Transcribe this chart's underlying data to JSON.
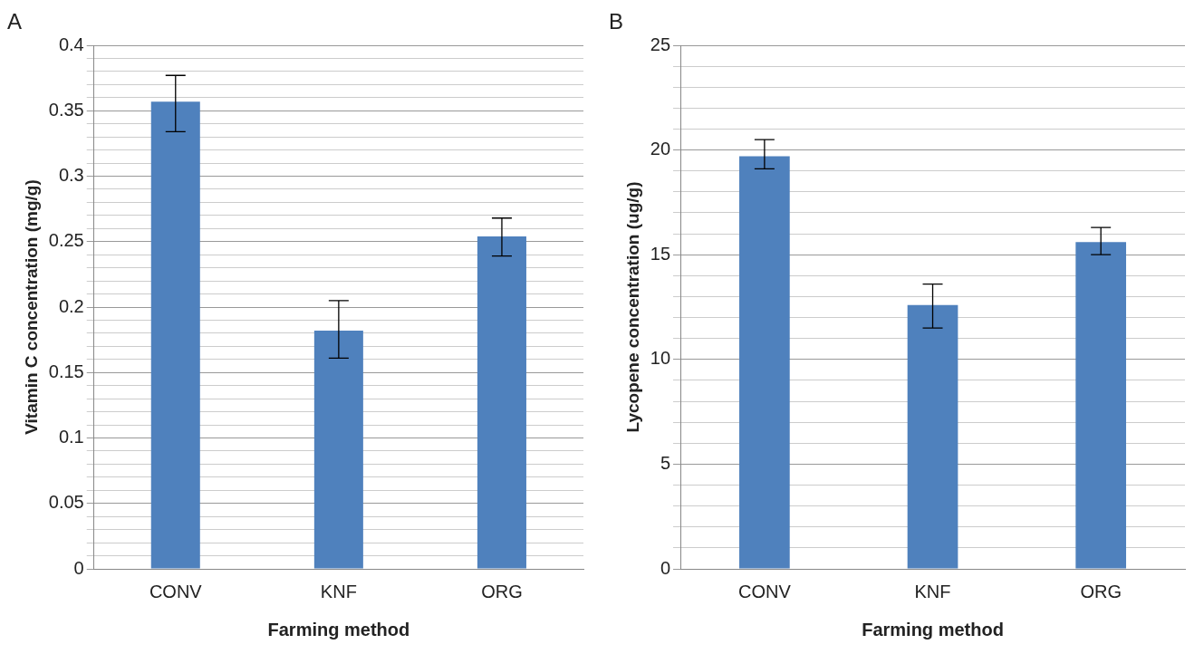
{
  "chart_data": [
    {
      "type": "bar",
      "annotations": [
        "A"
      ],
      "xlabel": "Farming method",
      "ylabel": "Vitamin C concentration (mg/g)",
      "categories": [
        "CONV",
        "KNF",
        "ORG"
      ],
      "values": [
        0.357,
        0.182,
        0.254
      ],
      "errors": [
        [
          0.334,
          0.377
        ],
        [
          0.161,
          0.205
        ],
        [
          0.239,
          0.268
        ]
      ],
      "color": "#4f81bd",
      "ylim": [
        0,
        0.4
      ],
      "yticks": [
        0,
        {
          "value": 0.01,
          "label": null
        },
        {
          "value": 0.02,
          "label": null
        },
        {
          "value": 0.03,
          "label": null
        },
        {
          "value": 0.04,
          "label": null
        },
        0.05,
        {
          "value": 0.06,
          "label": null
        },
        {
          "value": 0.07,
          "label": null
        },
        {
          "value": 0.08,
          "label": null
        },
        {
          "value": 0.09,
          "label": null
        },
        0.1,
        {
          "value": 0.11,
          "label": null
        },
        {
          "value": 0.12,
          "label": null
        },
        {
          "value": 0.13,
          "label": null
        },
        {
          "value": 0.14,
          "label": null
        },
        0.15,
        {
          "value": 0.16,
          "label": null
        },
        {
          "value": 0.17,
          "label": null
        },
        {
          "value": 0.18,
          "label": null
        },
        {
          "value": 0.19,
          "label": null
        },
        0.2,
        {
          "value": 0.21,
          "label": null
        },
        {
          "value": 0.22,
          "label": null
        },
        {
          "value": 0.23,
          "label": null
        },
        {
          "value": 0.24,
          "label": null
        },
        0.25,
        {
          "value": 0.26,
          "label": null
        },
        {
          "value": 0.27,
          "label": null
        },
        {
          "value": 0.28,
          "label": null
        },
        {
          "value": 0.29,
          "label": null
        },
        0.3,
        {
          "value": 0.31,
          "label": null
        },
        {
          "value": 0.32,
          "label": null
        },
        {
          "value": 0.33,
          "label": null
        },
        {
          "value": 0.34,
          "label": null
        },
        0.35,
        {
          "value": 0.36,
          "label": null
        },
        {
          "value": 0.37,
          "label": null
        },
        {
          "value": 0.38,
          "label": null
        },
        {
          "value": 0.39,
          "label": null
        },
        0.4
      ],
      "grid": "y",
      "legend": false
    },
    {
      "type": "bar",
      "annotations": [
        "B"
      ],
      "xlabel": "Farming method",
      "ylabel": "Lycopene concentration (ug/g)",
      "categories": [
        "CONV",
        "KNF",
        "ORG"
      ],
      "values": [
        19.7,
        12.6,
        15.6
      ],
      "errors": [
        [
          19.1,
          20.5
        ],
        [
          11.5,
          13.6
        ],
        [
          15.0,
          16.3
        ]
      ],
      "color": "#4f81bd",
      "ylim": [
        0,
        25
      ],
      "yticks": [
        0,
        {
          "value": 1,
          "label": null
        },
        {
          "value": 2,
          "label": null
        },
        {
          "value": 3,
          "label": null
        },
        {
          "value": 4,
          "label": null
        },
        5,
        {
          "value": 6,
          "label": null
        },
        {
          "value": 7,
          "label": null
        },
        {
          "value": 8,
          "label": null
        },
        {
          "value": 9,
          "label": null
        },
        10,
        {
          "value": 11,
          "label": null
        },
        {
          "value": 12,
          "label": null
        },
        {
          "value": 13,
          "label": null
        },
        {
          "value": 14,
          "label": null
        },
        15,
        {
          "value": 16,
          "label": null
        },
        {
          "value": 17,
          "label": null
        },
        {
          "value": 18,
          "label": null
        },
        {
          "value": 19,
          "label": null
        },
        20,
        {
          "value": 21,
          "label": null
        },
        {
          "value": 22,
          "label": null
        },
        {
          "value": 23,
          "label": null
        },
        {
          "value": 24,
          "label": null
        },
        25
      ],
      "grid": "y",
      "legend": false
    }
  ]
}
